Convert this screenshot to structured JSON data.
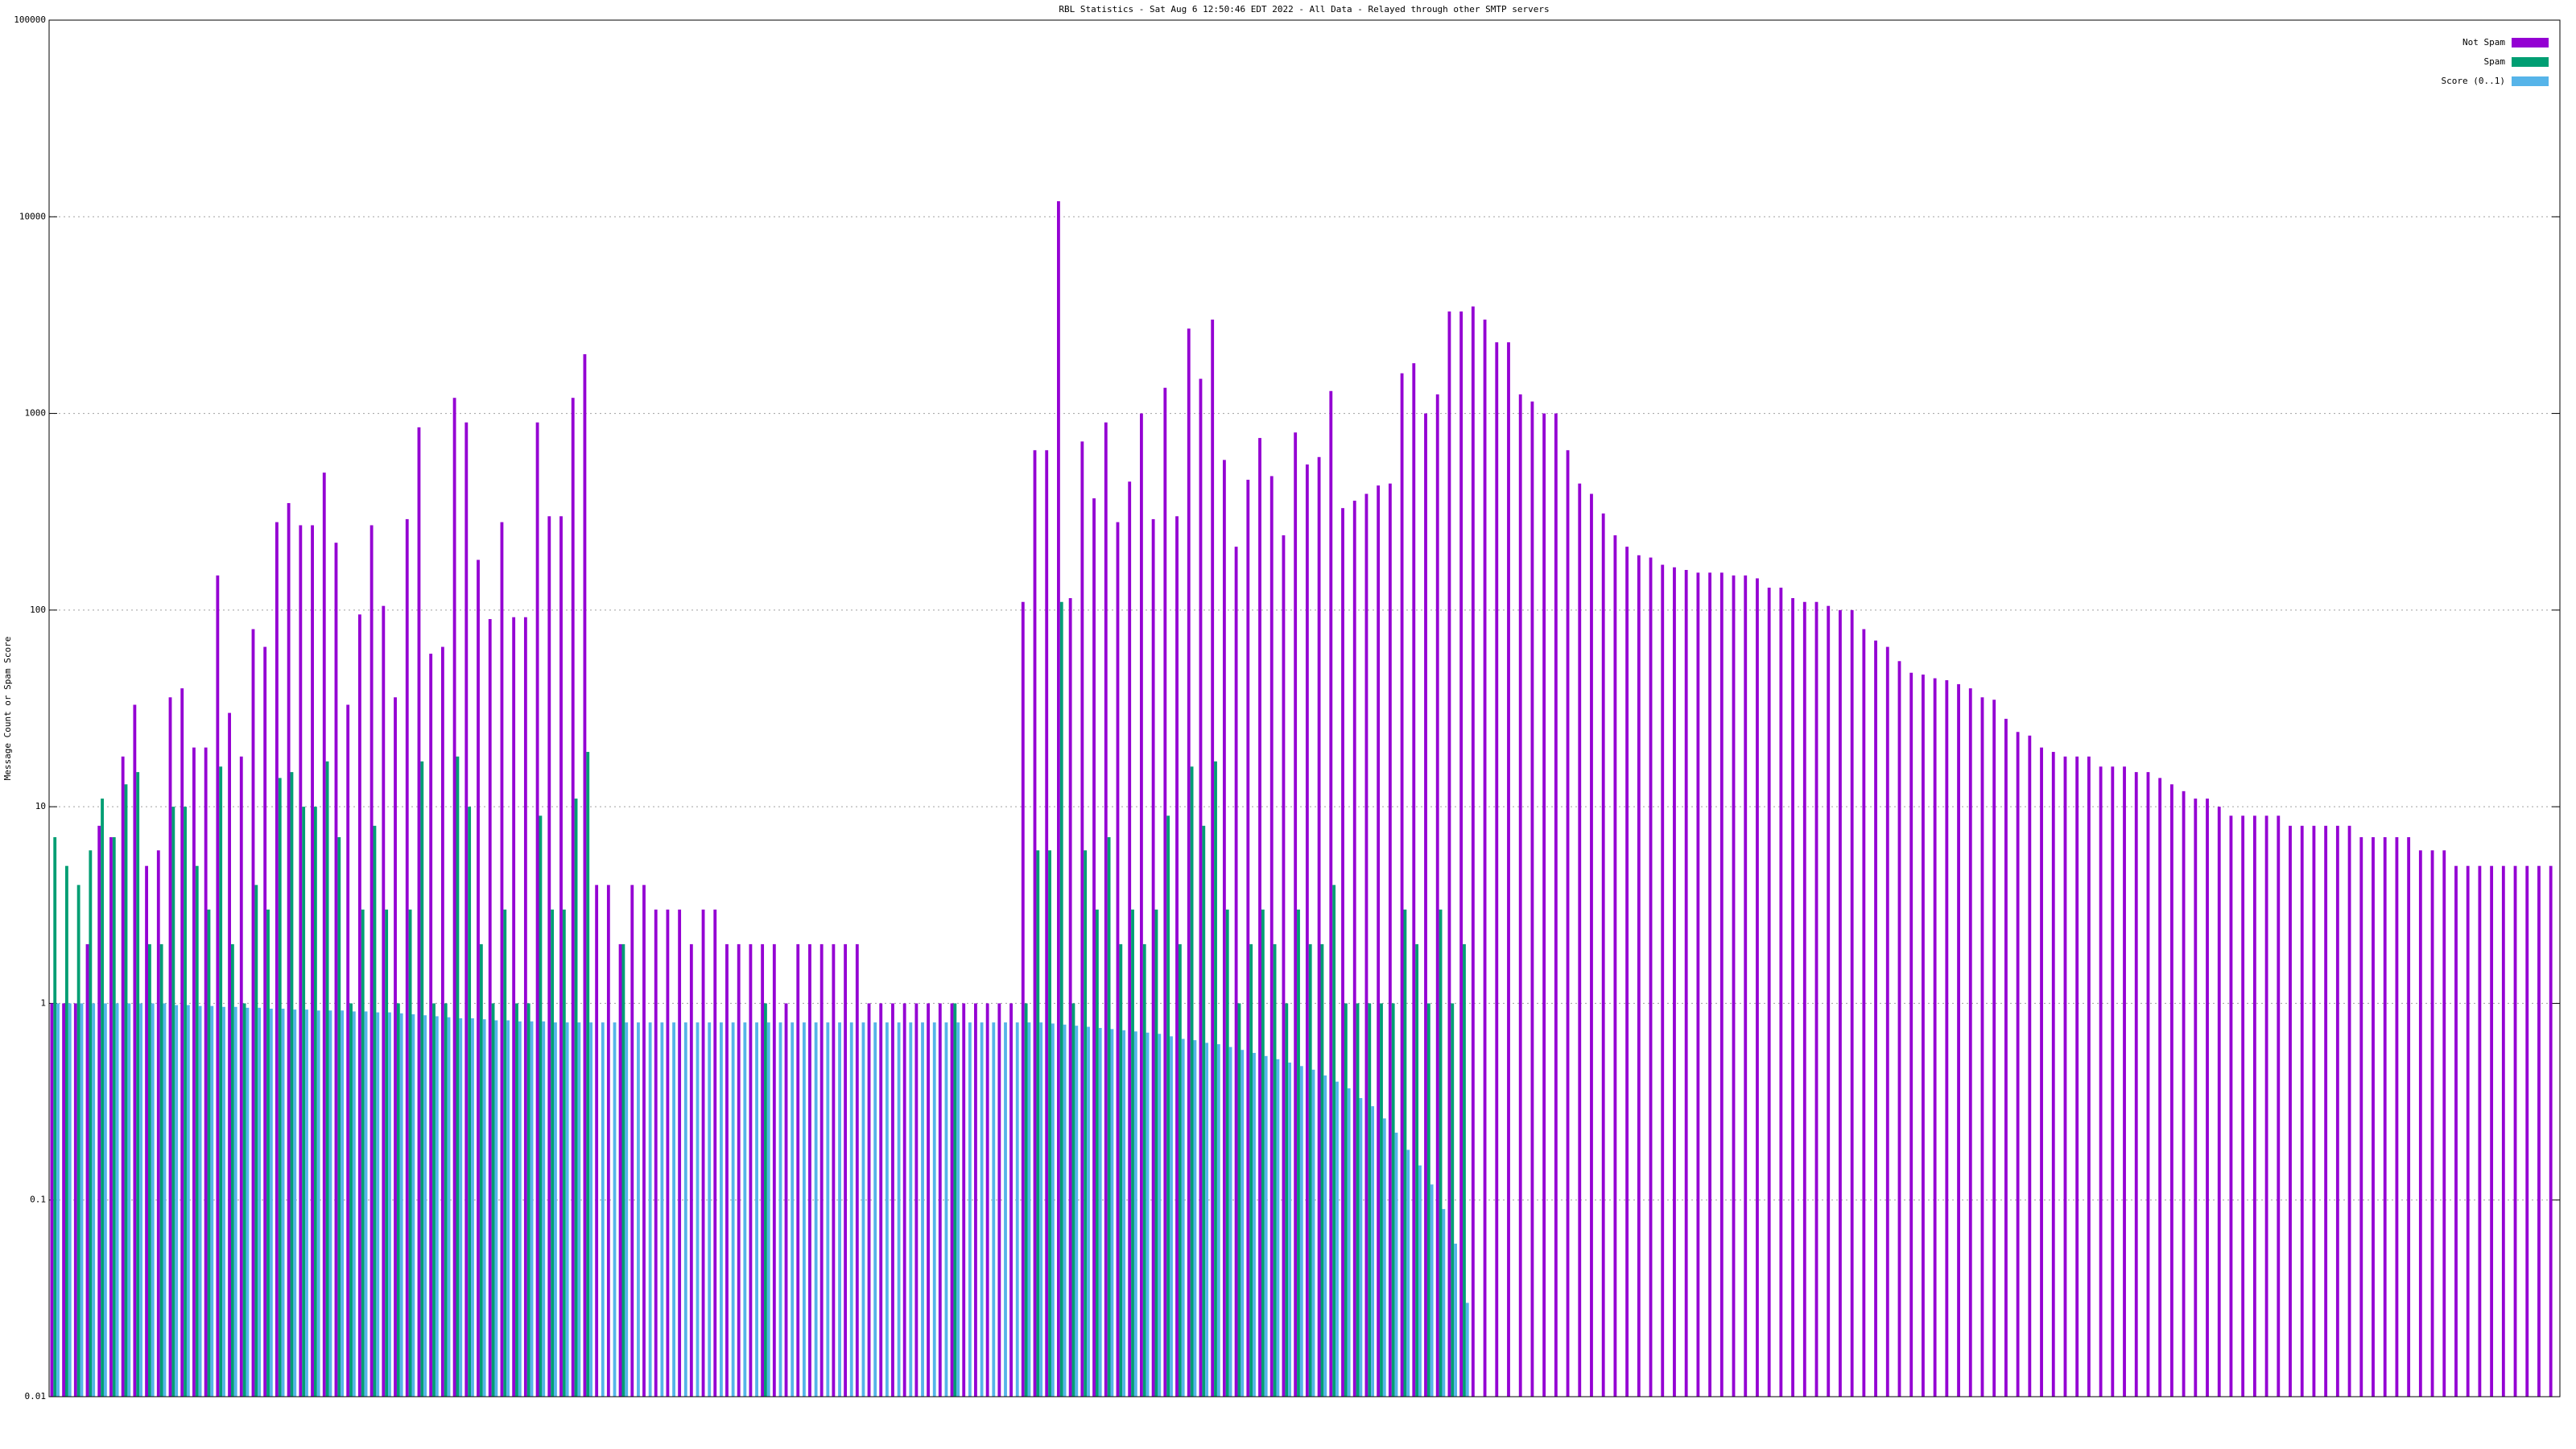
{
  "chart_data": {
    "type": "bar",
    "title": "RBL Statistics - Sat Aug  6 12:50:46 EDT 2022 - All Data - Relayed through other SMTP servers",
    "y_label": "Message Count or Spam Score",
    "log_y": true,
    "grid": true,
    "legend": "top-right",
    "ylim": [
      0.01,
      100000
    ],
    "yticks": [
      0.01,
      0.1,
      1,
      10,
      100,
      1000,
      10000,
      100000
    ],
    "series": [
      {
        "name": "Not Spam",
        "color": "#9400d3",
        "values": [
          1,
          1,
          1,
          2,
          8,
          7,
          18,
          33,
          5,
          6,
          36,
          40,
          20,
          20,
          150,
          30,
          18,
          80,
          65,
          280,
          350,
          270,
          270,
          500,
          220,
          33,
          95,
          270,
          105,
          36,
          290,
          850,
          60,
          65,
          1200,
          900,
          180,
          90,
          280,
          92,
          92,
          900,
          300,
          300,
          1200,
          2000,
          4,
          4,
          2,
          4,
          4,
          3,
          3,
          3,
          2,
          3,
          3,
          2,
          2,
          2,
          2,
          2,
          1,
          2,
          2,
          2,
          2,
          2,
          2,
          1,
          1,
          1,
          1,
          1,
          1,
          1,
          1,
          1,
          1,
          1,
          1,
          1,
          110,
          650,
          650,
          12000,
          115,
          720,
          370,
          900,
          280,
          450,
          1000,
          290,
          1350,
          300,
          2700,
          1500,
          3000,
          580,
          210,
          460,
          750,
          480,
          240,
          800,
          550,
          600,
          1300,
          330,
          360,
          390,
          430,
          440,
          1600,
          1800,
          1000,
          1250,
          3300,
          3300,
          3500,
          3000,
          2300,
          2300,
          1250,
          1150,
          1000,
          1000,
          650,
          440,
          390,
          310,
          240,
          210,
          190,
          185,
          170,
          165,
          160,
          155,
          155,
          155,
          150,
          150,
          145,
          130,
          130,
          115,
          110,
          110,
          105,
          100,
          100,
          80,
          70,
          65,
          55,
          48,
          47,
          45,
          44,
          42,
          40,
          36,
          35,
          28,
          24,
          23,
          20,
          19,
          18,
          18,
          18,
          16,
          16,
          16,
          15,
          15,
          14,
          13,
          12,
          11,
          11,
          10,
          9,
          9,
          9,
          9,
          9,
          8,
          8,
          8,
          8,
          8,
          8,
          7,
          7,
          7,
          7,
          7,
          6,
          6,
          6,
          5,
          5,
          5,
          5,
          5,
          5,
          5,
          5,
          5
        ]
      },
      {
        "name": "Spam",
        "color": "#009e73",
        "values": [
          7,
          5,
          4,
          6,
          11,
          7,
          13,
          15,
          2,
          2,
          10,
          10,
          5,
          3,
          16,
          2,
          1,
          4,
          3,
          14,
          15,
          10,
          10,
          17,
          7,
          1,
          3,
          8,
          3,
          1,
          3,
          17,
          1,
          1,
          18,
          10,
          2,
          1,
          3,
          1,
          1,
          9,
          3,
          3,
          11,
          19,
          null,
          null,
          2,
          null,
          null,
          null,
          null,
          null,
          null,
          null,
          null,
          null,
          null,
          null,
          1,
          null,
          null,
          null,
          null,
          null,
          null,
          null,
          null,
          null,
          null,
          null,
          null,
          null,
          null,
          null,
          1,
          null,
          null,
          null,
          null,
          null,
          1,
          6,
          6,
          110,
          1,
          6,
          3,
          7,
          2,
          3,
          2,
          3,
          9,
          2,
          16,
          8,
          17,
          3,
          1,
          2,
          3,
          2,
          1,
          3,
          2,
          2,
          4,
          1,
          1,
          1,
          1,
          1,
          3,
          2,
          1,
          3,
          1,
          2,
          null,
          null,
          null,
          null,
          null,
          null,
          null,
          null,
          null,
          null,
          null,
          null,
          null,
          null,
          null,
          null,
          null,
          null,
          null,
          null,
          null,
          null,
          null,
          null,
          null,
          null,
          null,
          null,
          null,
          null,
          null,
          null,
          null,
          null,
          null,
          null,
          null,
          null,
          null,
          null,
          null,
          null,
          null,
          null,
          null,
          null,
          null,
          null,
          null,
          null,
          null,
          null,
          null,
          null,
          null,
          null,
          null,
          null,
          null,
          null,
          null,
          null,
          null,
          null,
          null,
          null,
          null,
          null,
          null,
          null,
          null,
          null,
          null,
          null,
          null,
          null,
          null,
          null,
          null,
          null,
          null,
          null,
          null,
          null,
          null,
          null,
          null,
          null,
          null,
          null,
          null,
          null
        ]
      },
      {
        "name": "Score (0..1)",
        "color": "#56b4e9",
        "values": [
          1,
          1,
          1,
          1,
          1,
          1,
          1,
          1,
          1,
          1,
          0.98,
          0.98,
          0.97,
          0.97,
          0.96,
          0.96,
          0.95,
          0.95,
          0.94,
          0.94,
          0.93,
          0.93,
          0.92,
          0.92,
          0.92,
          0.91,
          0.91,
          0.9,
          0.9,
          0.89,
          0.88,
          0.87,
          0.86,
          0.85,
          0.84,
          0.84,
          0.83,
          0.82,
          0.82,
          0.81,
          0.81,
          0.81,
          0.8,
          0.8,
          0.8,
          0.8,
          0.8,
          0.8,
          0.8,
          0.8,
          0.8,
          0.8,
          0.8,
          0.8,
          0.8,
          0.8,
          0.8,
          0.8,
          0.8,
          0.8,
          0.8,
          0.8,
          0.8,
          0.8,
          0.8,
          0.8,
          0.8,
          0.8,
          0.8,
          0.8,
          0.8,
          0.8,
          0.8,
          0.8,
          0.8,
          0.8,
          0.8,
          0.8,
          0.8,
          0.8,
          0.8,
          0.8,
          0.8,
          0.8,
          0.79,
          0.78,
          0.77,
          0.76,
          0.75,
          0.74,
          0.73,
          0.72,
          0.71,
          0.7,
          0.68,
          0.66,
          0.65,
          0.63,
          0.62,
          0.6,
          0.58,
          0.56,
          0.54,
          0.52,
          0.5,
          0.48,
          0.46,
          0.43,
          0.4,
          0.37,
          0.33,
          0.3,
          0.26,
          0.22,
          0.18,
          0.15,
          0.12,
          0.09,
          0.06,
          0.03,
          null,
          null,
          null,
          null,
          null,
          null,
          null,
          null,
          null,
          null,
          null,
          null,
          null,
          null,
          null,
          null,
          null,
          null,
          null,
          null,
          null,
          null,
          null,
          null,
          null,
          null,
          null,
          null,
          null,
          null,
          null,
          null,
          null,
          null,
          null,
          null,
          null,
          null,
          null,
          null,
          null,
          null,
          null,
          null,
          null,
          null,
          null,
          null,
          null,
          null,
          null,
          null,
          null,
          null,
          null,
          null,
          null,
          null,
          null,
          null,
          null,
          null,
          null,
          null,
          null,
          null,
          null,
          null,
          null,
          null,
          null,
          null,
          null,
          null,
          null,
          null,
          null,
          null,
          null,
          null,
          null,
          null,
          null,
          null,
          null,
          null,
          null,
          null,
          null,
          null,
          null,
          null
        ]
      }
    ]
  }
}
